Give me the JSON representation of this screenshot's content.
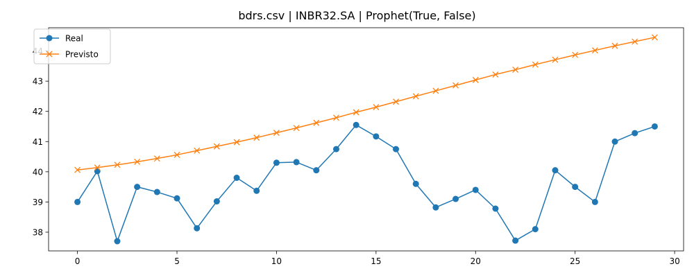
{
  "chart_data": {
    "type": "line",
    "title": "bdrs.csv | INBR32.SA | Prophet(True, False)",
    "xlabel": "",
    "ylabel": "",
    "x": [
      0,
      1,
      2,
      3,
      4,
      5,
      6,
      7,
      8,
      9,
      10,
      11,
      12,
      13,
      14,
      15,
      16,
      17,
      18,
      19,
      20,
      21,
      22,
      23,
      24,
      25,
      26,
      27,
      28,
      29
    ],
    "xlim": [
      -1.45,
      30.45
    ],
    "ylim": [
      37.38,
      44.77
    ],
    "xticks": [
      0,
      5,
      10,
      15,
      20,
      25,
      30
    ],
    "yticks": [
      38,
      39,
      40,
      41,
      42,
      43,
      44
    ],
    "grid": false,
    "legend_position": "top-left",
    "series": [
      {
        "name": "Real",
        "color": "#1f77b4",
        "marker": "circle",
        "values": [
          39.0,
          40.02,
          37.7,
          39.5,
          39.33,
          39.12,
          38.13,
          39.02,
          39.8,
          39.37,
          40.3,
          40.32,
          40.05,
          40.75,
          41.55,
          41.17,
          40.75,
          39.6,
          38.82,
          39.1,
          39.4,
          38.78,
          37.72,
          38.1,
          40.05,
          39.5,
          39.0,
          41.0,
          41.28,
          41.5
        ]
      },
      {
        "name": "Previsto",
        "color": "#ff7f0e",
        "marker": "x",
        "values": [
          40.06,
          40.14,
          40.23,
          40.33,
          40.44,
          40.56,
          40.7,
          40.84,
          40.98,
          41.13,
          41.29,
          41.45,
          41.62,
          41.79,
          41.97,
          42.14,
          42.32,
          42.5,
          42.68,
          42.86,
          43.04,
          43.22,
          43.38,
          43.55,
          43.71,
          43.87,
          44.02,
          44.17,
          44.31,
          44.45
        ]
      }
    ]
  }
}
